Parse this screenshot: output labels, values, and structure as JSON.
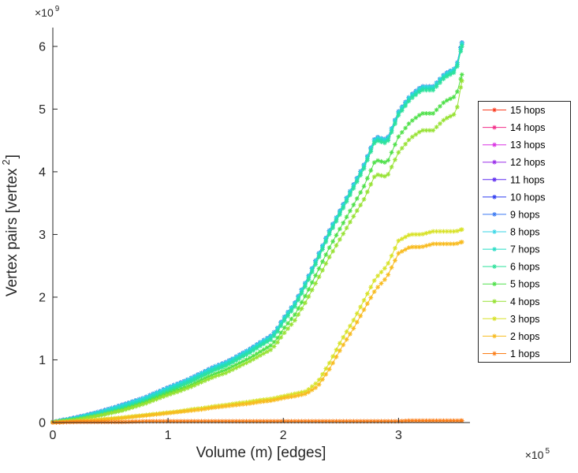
{
  "figure": {
    "background": "#ffffff",
    "axis_color": "#262626",
    "legend_border_color": "#262626"
  },
  "chart_data": {
    "type": "line",
    "title": "",
    "xlabel": "Volume (m) [edges]",
    "ylabel": "Vertex pairs [vertex^2]",
    "ylabel_parts": {
      "prefix": "Vertex pairs [vertex",
      "sup": "2",
      "suffix": "]"
    },
    "x_mult": {
      "base": "×10",
      "exp": "5"
    },
    "y_mult": {
      "base": "×10",
      "exp": "9"
    },
    "x_unit": 100000,
    "y_unit": 1000000000,
    "xlim_1e5": [
      0,
      3.62
    ],
    "ylim_1e9": [
      0,
      6.3
    ],
    "xticks": {
      "values_1e5": [
        0,
        1,
        2,
        3
      ],
      "labels": [
        "0",
        "1",
        "2",
        "3"
      ]
    },
    "yticks": {
      "values_1e9": [
        0,
        1,
        2,
        3,
        4,
        5,
        6
      ],
      "labels": [
        "0",
        "1",
        "2",
        "3",
        "4",
        "5",
        "6"
      ]
    },
    "grid": false,
    "marker": "*",
    "legend_position": "outside-right",
    "x_anchors_1e5": [
      0,
      0.2,
      0.4,
      0.6,
      0.8,
      1.0,
      1.1,
      1.2,
      1.3,
      1.4,
      1.5,
      1.6,
      1.7,
      1.8,
      1.9,
      1.95,
      2.0,
      2.1,
      2.2,
      2.3,
      2.4,
      2.5,
      2.6,
      2.7,
      2.8,
      2.9,
      3.0,
      3.1,
      3.2,
      3.3,
      3.4,
      3.5,
      3.55
    ],
    "series": [
      {
        "name": "15 hops",
        "color": "#fa3b1f",
        "y_1e9": [
          0.01,
          0.08,
          0.17,
          0.28,
          0.4,
          0.56,
          0.63,
          0.71,
          0.8,
          0.89,
          0.96,
          1.06,
          1.16,
          1.28,
          1.39,
          1.51,
          1.66,
          1.91,
          2.26,
          2.66,
          3.06,
          3.41,
          3.76,
          4.11,
          4.56,
          4.51,
          4.96,
          5.21,
          5.36,
          5.36,
          5.56,
          5.66,
          6.06
        ]
      },
      {
        "name": "14 hops",
        "color": "#f32d88",
        "y_1e9": [
          0.01,
          0.08,
          0.17,
          0.28,
          0.4,
          0.56,
          0.63,
          0.71,
          0.8,
          0.89,
          0.96,
          1.06,
          1.16,
          1.28,
          1.39,
          1.51,
          1.66,
          1.91,
          2.26,
          2.66,
          3.06,
          3.41,
          3.76,
          4.11,
          4.56,
          4.51,
          4.96,
          5.21,
          5.36,
          5.36,
          5.56,
          5.66,
          6.06
        ]
      },
      {
        "name": "13 hops",
        "color": "#da33e3",
        "y_1e9": [
          0.01,
          0.08,
          0.17,
          0.28,
          0.4,
          0.56,
          0.63,
          0.71,
          0.8,
          0.89,
          0.96,
          1.06,
          1.16,
          1.28,
          1.39,
          1.51,
          1.66,
          1.91,
          2.26,
          2.66,
          3.06,
          3.41,
          3.76,
          4.11,
          4.56,
          4.51,
          4.96,
          5.21,
          5.36,
          5.36,
          5.56,
          5.66,
          6.06
        ]
      },
      {
        "name": "12 hops",
        "color": "#9b30ea",
        "y_1e9": [
          0.01,
          0.08,
          0.17,
          0.28,
          0.4,
          0.56,
          0.63,
          0.71,
          0.8,
          0.89,
          0.96,
          1.06,
          1.16,
          1.28,
          1.39,
          1.51,
          1.66,
          1.91,
          2.26,
          2.66,
          3.06,
          3.41,
          3.76,
          4.11,
          4.56,
          4.51,
          4.96,
          5.21,
          5.36,
          5.36,
          5.56,
          5.66,
          6.06
        ]
      },
      {
        "name": "11 hops",
        "color": "#5f2cf0",
        "y_1e9": [
          0.01,
          0.08,
          0.17,
          0.28,
          0.4,
          0.56,
          0.63,
          0.71,
          0.8,
          0.89,
          0.96,
          1.06,
          1.16,
          1.28,
          1.39,
          1.51,
          1.66,
          1.91,
          2.26,
          2.66,
          3.06,
          3.41,
          3.76,
          4.11,
          4.56,
          4.51,
          4.96,
          5.21,
          5.36,
          5.36,
          5.56,
          5.66,
          6.06
        ]
      },
      {
        "name": "10 hops",
        "color": "#2d3af0",
        "y_1e9": [
          0.01,
          0.08,
          0.17,
          0.28,
          0.4,
          0.56,
          0.63,
          0.71,
          0.8,
          0.89,
          0.96,
          1.06,
          1.16,
          1.28,
          1.39,
          1.51,
          1.66,
          1.91,
          2.26,
          2.66,
          3.06,
          3.41,
          3.76,
          4.11,
          4.56,
          4.51,
          4.96,
          5.21,
          5.36,
          5.36,
          5.56,
          5.66,
          6.06
        ]
      },
      {
        "name": "9 hops",
        "color": "#3a79f2",
        "y_1e9": [
          0.01,
          0.08,
          0.17,
          0.28,
          0.4,
          0.56,
          0.63,
          0.71,
          0.8,
          0.89,
          0.96,
          1.06,
          1.16,
          1.28,
          1.39,
          1.51,
          1.66,
          1.91,
          2.26,
          2.66,
          3.06,
          3.41,
          3.76,
          4.11,
          4.56,
          4.51,
          4.96,
          5.21,
          5.36,
          5.36,
          5.56,
          5.66,
          6.06
        ]
      },
      {
        "name": "8 hops",
        "color": "#35d6e6",
        "y_1e9": [
          0.01,
          0.08,
          0.17,
          0.28,
          0.4,
          0.56,
          0.63,
          0.71,
          0.8,
          0.89,
          0.96,
          1.06,
          1.16,
          1.28,
          1.39,
          1.51,
          1.66,
          1.91,
          2.26,
          2.66,
          3.06,
          3.41,
          3.76,
          4.11,
          4.56,
          4.51,
          4.96,
          5.21,
          5.36,
          5.36,
          5.56,
          5.66,
          6.06
        ]
      },
      {
        "name": "7 hops",
        "color": "#23dcc4",
        "y_1e9": [
          0.01,
          0.07,
          0.15,
          0.25,
          0.37,
          0.53,
          0.6,
          0.68,
          0.77,
          0.86,
          0.93,
          1.03,
          1.13,
          1.25,
          1.36,
          1.48,
          1.63,
          1.88,
          2.23,
          2.63,
          3.03,
          3.38,
          3.73,
          4.08,
          4.53,
          4.48,
          4.93,
          5.18,
          5.33,
          5.33,
          5.53,
          5.63,
          6.03
        ]
      },
      {
        "name": "6 hops",
        "color": "#2ee29b",
        "y_1e9": [
          0.01,
          0.05,
          0.12,
          0.22,
          0.34,
          0.5,
          0.57,
          0.65,
          0.74,
          0.83,
          0.9,
          1.0,
          1.1,
          1.22,
          1.33,
          1.45,
          1.6,
          1.85,
          2.2,
          2.6,
          3.0,
          3.35,
          3.7,
          4.05,
          4.5,
          4.45,
          4.9,
          5.15,
          5.3,
          5.3,
          5.5,
          5.6,
          6.0
        ]
      },
      {
        "name": "5 hops",
        "color": "#4fe04a",
        "y_1e9": [
          0.01,
          0.05,
          0.11,
          0.2,
          0.32,
          0.47,
          0.53,
          0.6,
          0.69,
          0.77,
          0.84,
          0.93,
          1.02,
          1.13,
          1.24,
          1.35,
          1.49,
          1.72,
          2.05,
          2.42,
          2.79,
          3.12,
          3.44,
          3.77,
          4.19,
          4.14,
          4.56,
          4.79,
          4.93,
          4.93,
          5.12,
          5.21,
          5.55
        ]
      },
      {
        "name": "4 hops",
        "color": "#97e234",
        "y_1e9": [
          0.01,
          0.04,
          0.11,
          0.19,
          0.3,
          0.44,
          0.5,
          0.57,
          0.65,
          0.73,
          0.79,
          0.88,
          0.97,
          1.07,
          1.17,
          1.28,
          1.41,
          1.63,
          1.94,
          2.29,
          2.64,
          2.95,
          3.26,
          3.56,
          3.96,
          3.92,
          4.31,
          4.53,
          4.66,
          4.66,
          4.84,
          4.93,
          5.45
        ]
      },
      {
        "name": "3 hops",
        "color": "#d8e228",
        "y_1e9": [
          0.0,
          0.02,
          0.05,
          0.08,
          0.12,
          0.16,
          0.18,
          0.21,
          0.23,
          0.26,
          0.28,
          0.31,
          0.33,
          0.36,
          0.38,
          0.4,
          0.42,
          0.46,
          0.5,
          0.65,
          0.95,
          1.3,
          1.6,
          1.95,
          2.3,
          2.5,
          2.9,
          3.0,
          3.0,
          3.05,
          3.05,
          3.05,
          3.08
        ]
      },
      {
        "name": "2 hops",
        "color": "#f8bb1f",
        "y_1e9": [
          0.0,
          0.02,
          0.04,
          0.07,
          0.11,
          0.15,
          0.17,
          0.19,
          0.21,
          0.24,
          0.26,
          0.28,
          0.3,
          0.33,
          0.35,
          0.37,
          0.39,
          0.42,
          0.46,
          0.58,
          0.85,
          1.18,
          1.47,
          1.8,
          2.12,
          2.32,
          2.7,
          2.8,
          2.8,
          2.85,
          2.85,
          2.85,
          2.88
        ]
      },
      {
        "name": "1 hops",
        "color": "#fb7d17",
        "y_1e9": [
          0.0,
          0.01,
          0.01,
          0.01,
          0.02,
          0.02,
          0.02,
          0.02,
          0.02,
          0.02,
          0.02,
          0.02,
          0.02,
          0.02,
          0.02,
          0.02,
          0.02,
          0.02,
          0.02,
          0.02,
          0.02,
          0.02,
          0.02,
          0.02,
          0.02,
          0.02,
          0.02,
          0.03,
          0.03,
          0.03,
          0.03,
          0.03,
          0.03
        ]
      }
    ]
  }
}
